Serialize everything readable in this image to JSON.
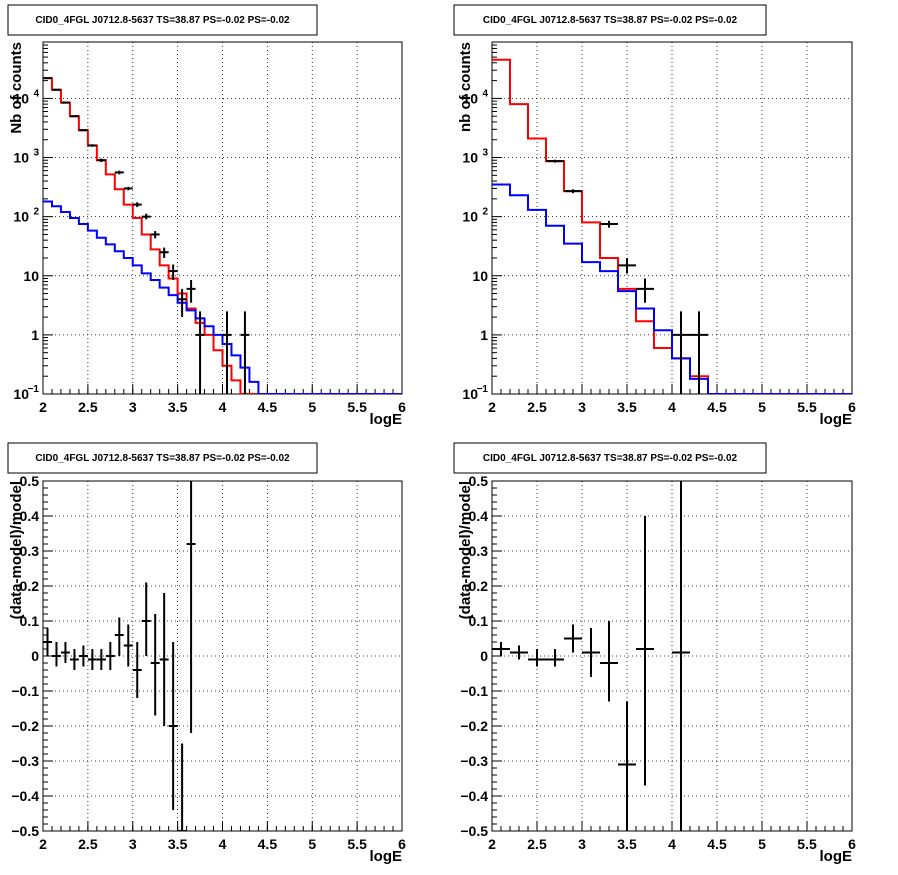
{
  "chart_data": [
    {
      "type": "line",
      "title": "CID0_4FGL J0712.8-5637 TS=38.87 PS=-0.02 PS=-0.02",
      "xlabel": "logE",
      "ylabel": "Nb of counts",
      "log_y": true,
      "xlim": [
        2,
        6
      ],
      "ylim": [
        0.1,
        90000
      ],
      "grid": true,
      "x_ticks": [
        {
          "v": 2,
          "t": "2"
        },
        {
          "v": 2.5,
          "t": "2.5"
        },
        {
          "v": 3,
          "t": "3"
        },
        {
          "v": 3.5,
          "t": "3.5"
        },
        {
          "v": 4,
          "t": "4"
        },
        {
          "v": 4.5,
          "t": "4.5"
        },
        {
          "v": 5,
          "t": "5"
        },
        {
          "v": 5.5,
          "t": "5.5"
        },
        {
          "v": 6,
          "t": "6"
        }
      ],
      "y_ticks": [
        {
          "v": 0.1,
          "t": "10",
          "sup": "−1"
        },
        {
          "v": 1,
          "t": "1"
        },
        {
          "v": 10,
          "t": "10"
        },
        {
          "v": 100,
          "t": "10",
          "sup": "2"
        },
        {
          "v": 1000,
          "t": "10",
          "sup": "3"
        },
        {
          "v": 10000,
          "t": "10",
          "sup": "4"
        }
      ],
      "series": [
        {
          "color": "#ff0000",
          "style": "step",
          "bin_width": 0.1,
          "edges_start": 2.0,
          "values": [
            22000,
            14000,
            8500,
            5000,
            2900,
            1600,
            900,
            520,
            290,
            160,
            95,
            50,
            28,
            15,
            9,
            5,
            2.8,
            1.6,
            1.0,
            0.55,
            0.3,
            0.17,
            0.1,
            0.1,
            0.1,
            0.1,
            0.1,
            0.1,
            0.1,
            0.1,
            0.1,
            0.1,
            0.1,
            0.1,
            0.1,
            0.1,
            0.1,
            0.1,
            0.1,
            0.1
          ]
        },
        {
          "color": "#0000ff",
          "style": "step",
          "bin_width": 0.1,
          "edges_start": 2.0,
          "values": [
            180,
            150,
            120,
            95,
            75,
            58,
            44,
            34,
            26,
            20,
            15,
            11,
            8.5,
            6.3,
            4.7,
            3.5,
            2.6,
            1.9,
            1.4,
            1.0,
            0.7,
            0.45,
            0.28,
            0.16,
            0.1,
            0.1,
            0.1,
            0.1,
            0.1,
            0.1,
            0.1,
            0.1,
            0.1,
            0.1,
            0.1,
            0.1,
            0.1,
            0.1,
            0.1,
            0.1
          ]
        },
        {
          "color": "#000000",
          "style": "points",
          "points": [
            {
              "x": 2.05,
              "y": 22000,
              "xe": 0.05,
              "ylo": 21700,
              "yhi": 22300
            },
            {
              "x": 2.15,
              "y": 14000,
              "xe": 0.05,
              "ylo": 13760,
              "yhi": 14240
            },
            {
              "x": 2.25,
              "y": 8500,
              "xe": 0.05,
              "ylo": 8310,
              "yhi": 8690
            },
            {
              "x": 2.35,
              "y": 5000,
              "xe": 0.05,
              "ylo": 4860,
              "yhi": 5140
            },
            {
              "x": 2.45,
              "y": 2900,
              "xe": 0.05,
              "ylo": 2790,
              "yhi": 3010
            },
            {
              "x": 2.55,
              "y": 1600,
              "xe": 0.05,
              "ylo": 1520,
              "yhi": 1680
            },
            {
              "x": 2.65,
              "y": 900,
              "xe": 0.05,
              "ylo": 840,
              "yhi": 960
            },
            {
              "x": 2.85,
              "y": 560,
              "xe": 0.05,
              "ylo": 520,
              "yhi": 600
            },
            {
              "x": 2.95,
              "y": 300,
              "xe": 0.05,
              "ylo": 280,
              "yhi": 320
            },
            {
              "x": 3.05,
              "y": 160,
              "xe": 0.05,
              "ylo": 145,
              "yhi": 175
            },
            {
              "x": 3.15,
              "y": 100,
              "xe": 0.05,
              "ylo": 90,
              "yhi": 112
            },
            {
              "x": 3.25,
              "y": 50,
              "xe": 0.05,
              "ylo": 43,
              "yhi": 57
            },
            {
              "x": 3.35,
              "y": 25,
              "xe": 0.05,
              "ylo": 20,
              "yhi": 30
            },
            {
              "x": 3.45,
              "y": 12,
              "xe": 0.05,
              "ylo": 8.5,
              "yhi": 15.5
            },
            {
              "x": 3.55,
              "y": 4,
              "xe": 0.05,
              "ylo": 2,
              "yhi": 6
            },
            {
              "x": 3.65,
              "y": 6,
              "xe": 0.05,
              "ylo": 3.5,
              "yhi": 8.5
            },
            {
              "x": 3.75,
              "y": 1,
              "xe": 0.05,
              "ylo": 0.1,
              "yhi": 2.5
            },
            {
              "x": 4.05,
              "y": 1,
              "xe": 0.05,
              "ylo": 0.1,
              "yhi": 2.5
            },
            {
              "x": 4.25,
              "y": 1,
              "xe": 0.05,
              "ylo": 0.1,
              "yhi": 2.5
            }
          ]
        }
      ]
    },
    {
      "type": "line",
      "title": "CID0_4FGL J0712.8-5637 TS=38.87 PS=-0.02 PS=-0.02",
      "xlabel": "logE",
      "ylabel": "nb of counts",
      "log_y": true,
      "xlim": [
        2,
        6
      ],
      "ylim": [
        0.1,
        90000
      ],
      "grid": true,
      "x_ticks": [
        {
          "v": 2,
          "t": "2"
        },
        {
          "v": 2.5,
          "t": "2.5"
        },
        {
          "v": 3,
          "t": "3"
        },
        {
          "v": 3.5,
          "t": "3.5"
        },
        {
          "v": 4,
          "t": "4"
        },
        {
          "v": 4.5,
          "t": "4.5"
        },
        {
          "v": 5,
          "t": "5"
        },
        {
          "v": 5.5,
          "t": "5.5"
        },
        {
          "v": 6,
          "t": "6"
        }
      ],
      "y_ticks": [
        {
          "v": 0.1,
          "t": "10",
          "sup": "−1"
        },
        {
          "v": 1,
          "t": "1"
        },
        {
          "v": 10,
          "t": "10"
        },
        {
          "v": 100,
          "t": "10",
          "sup": "2"
        },
        {
          "v": 1000,
          "t": "10",
          "sup": "3"
        },
        {
          "v": 10000,
          "t": "10",
          "sup": "4"
        }
      ],
      "series": [
        {
          "color": "#ff0000",
          "style": "step",
          "bin_width": 0.2,
          "edges_start": 2.0,
          "values": [
            45000,
            8000,
            2100,
            870,
            270,
            80,
            20,
            6,
            1.7,
            0.6,
            0.4,
            0.2,
            0.1,
            0.1,
            0.1,
            0.1,
            0.1,
            0.1,
            0.1,
            0.1
          ]
        },
        {
          "color": "#0000ff",
          "style": "step",
          "bin_width": 0.2,
          "edges_start": 2.0,
          "values": [
            350,
            230,
            130,
            70,
            35,
            17,
            12,
            5.5,
            2.8,
            1.2,
            0.4,
            0.18,
            0.1,
            0.1,
            0.1,
            0.1,
            0.1,
            0.1,
            0.1,
            0.1
          ]
        },
        {
          "color": "#000000",
          "style": "points",
          "points": [
            {
              "x": 2.7,
              "y": 870,
              "xe": 0.1,
              "ylo": 820,
              "yhi": 920
            },
            {
              "x": 2.9,
              "y": 270,
              "xe": 0.1,
              "ylo": 250,
              "yhi": 290
            },
            {
              "x": 3.3,
              "y": 75,
              "xe": 0.1,
              "ylo": 65,
              "yhi": 85
            },
            {
              "x": 3.5,
              "y": 15,
              "xe": 0.1,
              "ylo": 11,
              "yhi": 20
            },
            {
              "x": 3.7,
              "y": 6,
              "xe": 0.1,
              "ylo": 3.5,
              "yhi": 9
            },
            {
              "x": 4.1,
              "y": 1,
              "xe": 0.1,
              "ylo": 0.1,
              "yhi": 2.5
            },
            {
              "x": 4.3,
              "y": 1,
              "xe": 0.1,
              "ylo": 0.1,
              "yhi": 2.5
            }
          ]
        }
      ]
    },
    {
      "type": "scatter",
      "title": "CID0_4FGL J0712.8-5637 TS=38.87 PS=-0.02 PS=-0.02",
      "xlabel": "logE",
      "ylabel": "(data-model)/model",
      "log_y": false,
      "xlim": [
        2,
        6
      ],
      "ylim": [
        -0.5,
        0.5
      ],
      "grid": true,
      "x_ticks": [
        {
          "v": 2,
          "t": "2"
        },
        {
          "v": 2.5,
          "t": "2.5"
        },
        {
          "v": 3,
          "t": "3"
        },
        {
          "v": 3.5,
          "t": "3.5"
        },
        {
          "v": 4,
          "t": "4"
        },
        {
          "v": 4.5,
          "t": "4.5"
        },
        {
          "v": 5,
          "t": "5"
        },
        {
          "v": 5.5,
          "t": "5.5"
        },
        {
          "v": 6,
          "t": "6"
        }
      ],
      "y_ticks": [
        {
          "v": -0.5,
          "t": "−0.5"
        },
        {
          "v": -0.4,
          "t": "−0.4"
        },
        {
          "v": -0.3,
          "t": "−0.3"
        },
        {
          "v": -0.2,
          "t": "−0.2"
        },
        {
          "v": -0.1,
          "t": "−0.1"
        },
        {
          "v": 0,
          "t": "0"
        },
        {
          "v": 0.1,
          "t": "0.1"
        },
        {
          "v": 0.2,
          "t": "0.2"
        },
        {
          "v": 0.3,
          "t": "0.3"
        },
        {
          "v": 0.4,
          "t": "0.4"
        },
        {
          "v": 0.5,
          "t": "0.5"
        }
      ],
      "series": [
        {
          "color": "#000000",
          "style": "points",
          "points": [
            {
              "x": 2.05,
              "y": 0.04,
              "xe": 0.05,
              "ylo": 0.0,
              "yhi": 0.08
            },
            {
              "x": 2.15,
              "y": 0.0,
              "xe": 0.05,
              "ylo": -0.03,
              "yhi": 0.04
            },
            {
              "x": 2.25,
              "y": 0.01,
              "xe": 0.05,
              "ylo": -0.02,
              "yhi": 0.04
            },
            {
              "x": 2.35,
              "y": -0.01,
              "xe": 0.05,
              "ylo": -0.04,
              "yhi": 0.02
            },
            {
              "x": 2.45,
              "y": 0.0,
              "xe": 0.05,
              "ylo": -0.03,
              "yhi": 0.03
            },
            {
              "x": 2.55,
              "y": -0.01,
              "xe": 0.05,
              "ylo": -0.04,
              "yhi": 0.02
            },
            {
              "x": 2.65,
              "y": -0.01,
              "xe": 0.05,
              "ylo": -0.04,
              "yhi": 0.02
            },
            {
              "x": 2.75,
              "y": 0.0,
              "xe": 0.05,
              "ylo": -0.04,
              "yhi": 0.04
            },
            {
              "x": 2.85,
              "y": 0.06,
              "xe": 0.05,
              "ylo": 0.0,
              "yhi": 0.11
            },
            {
              "x": 2.95,
              "y": 0.03,
              "xe": 0.05,
              "ylo": -0.03,
              "yhi": 0.09
            },
            {
              "x": 3.05,
              "y": -0.04,
              "xe": 0.05,
              "ylo": -0.12,
              "yhi": 0.04
            },
            {
              "x": 3.15,
              "y": 0.1,
              "xe": 0.05,
              "ylo": 0.0,
              "yhi": 0.21
            },
            {
              "x": 3.25,
              "y": -0.02,
              "xe": 0.05,
              "ylo": -0.17,
              "yhi": 0.12
            },
            {
              "x": 3.35,
              "y": -0.01,
              "xe": 0.05,
              "ylo": -0.2,
              "yhi": 0.18
            },
            {
              "x": 3.45,
              "y": -0.2,
              "xe": 0.05,
              "ylo": -0.44,
              "yhi": 0.04
            },
            {
              "x": 3.55,
              "y": -0.5,
              "xe": 0.05,
              "ylo": -0.5,
              "yhi": -0.25
            },
            {
              "x": 3.65,
              "y": 0.32,
              "xe": 0.05,
              "ylo": -0.22,
              "yhi": 0.5
            }
          ]
        }
      ]
    },
    {
      "type": "scatter",
      "title": "CID0_4FGL J0712.8-5637 TS=38.87 PS=-0.02 PS=-0.02",
      "xlabel": "logE",
      "ylabel": "(data-model)/model",
      "log_y": false,
      "xlim": [
        2,
        6
      ],
      "ylim": [
        -0.5,
        0.5
      ],
      "grid": true,
      "x_ticks": [
        {
          "v": 2,
          "t": "2"
        },
        {
          "v": 2.5,
          "t": "2.5"
        },
        {
          "v": 3,
          "t": "3"
        },
        {
          "v": 3.5,
          "t": "3.5"
        },
        {
          "v": 4,
          "t": "4"
        },
        {
          "v": 4.5,
          "t": "4.5"
        },
        {
          "v": 5,
          "t": "5"
        },
        {
          "v": 5.5,
          "t": "5.5"
        },
        {
          "v": 6,
          "t": "6"
        }
      ],
      "y_ticks": [
        {
          "v": -0.5,
          "t": "−0.5"
        },
        {
          "v": -0.4,
          "t": "−0.4"
        },
        {
          "v": -0.3,
          "t": "−0.3"
        },
        {
          "v": -0.2,
          "t": "−0.2"
        },
        {
          "v": -0.1,
          "t": "−0.1"
        },
        {
          "v": 0,
          "t": "0"
        },
        {
          "v": 0.1,
          "t": "0.1"
        },
        {
          "v": 0.2,
          "t": "0.2"
        },
        {
          "v": 0.3,
          "t": "0.3"
        },
        {
          "v": 0.4,
          "t": "0.4"
        },
        {
          "v": 0.5,
          "t": "0.5"
        }
      ],
      "series": [
        {
          "color": "#000000",
          "style": "points",
          "points": [
            {
              "x": 2.1,
              "y": 0.02,
              "xe": 0.1,
              "ylo": 0.0,
              "yhi": 0.04
            },
            {
              "x": 2.3,
              "y": 0.01,
              "xe": 0.1,
              "ylo": -0.01,
              "yhi": 0.03
            },
            {
              "x": 2.5,
              "y": -0.01,
              "xe": 0.1,
              "ylo": -0.03,
              "yhi": 0.02
            },
            {
              "x": 2.7,
              "y": -0.01,
              "xe": 0.1,
              "ylo": -0.03,
              "yhi": 0.02
            },
            {
              "x": 2.9,
              "y": 0.05,
              "xe": 0.1,
              "ylo": 0.01,
              "yhi": 0.09
            },
            {
              "x": 3.1,
              "y": 0.01,
              "xe": 0.1,
              "ylo": -0.06,
              "yhi": 0.08
            },
            {
              "x": 3.3,
              "y": -0.02,
              "xe": 0.1,
              "ylo": -0.13,
              "yhi": 0.1
            },
            {
              "x": 3.5,
              "y": -0.31,
              "xe": 0.1,
              "ylo": -0.5,
              "yhi": -0.13
            },
            {
              "x": 3.7,
              "y": 0.02,
              "xe": 0.1,
              "ylo": -0.37,
              "yhi": 0.4
            },
            {
              "x": 4.1,
              "y": 0.01,
              "xe": 0.1,
              "ylo": -0.5,
              "yhi": 0.5
            }
          ]
        }
      ]
    }
  ]
}
